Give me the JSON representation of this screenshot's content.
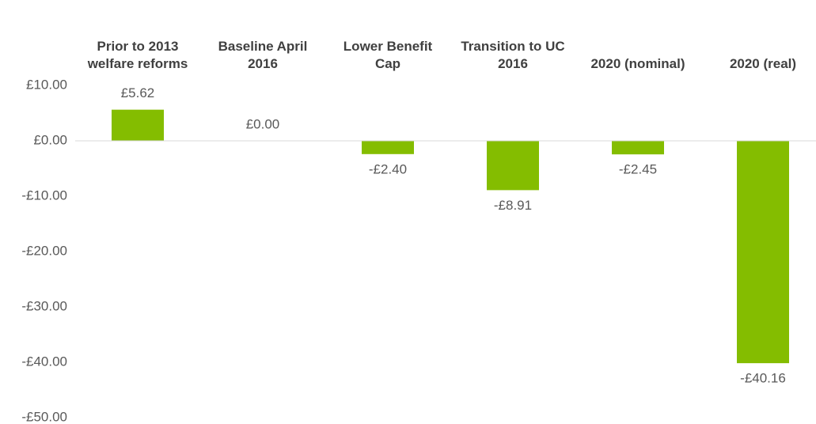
{
  "chart_data": {
    "type": "bar",
    "categories": [
      "Prior to 2013 welfare reforms",
      "Baseline April 2016",
      "Lower Benefit Cap",
      "Transition to UC 2016",
      "2020 (nominal)",
      "2020 (real)"
    ],
    "values": [
      5.62,
      0,
      -2.4,
      -8.91,
      -2.45,
      -40.16
    ],
    "value_labels": [
      "£5.62",
      "£0.00",
      "-£2.40",
      "-£8.91",
      "-£2.45",
      "-£40.16"
    ],
    "color": "#84bd00",
    "ylim": [
      -50,
      10
    ],
    "yticks": [
      {
        "value": 10,
        "label": "£10.00"
      },
      {
        "value": 0,
        "label": "£0.00"
      },
      {
        "value": -10,
        "label": "-£10.00"
      },
      {
        "value": -20,
        "label": "-£20.00"
      },
      {
        "value": -30,
        "label": "-£30.00"
      },
      {
        "value": -40,
        "label": "-£40.00"
      },
      {
        "value": -50,
        "label": "-£50.00"
      }
    ]
  }
}
